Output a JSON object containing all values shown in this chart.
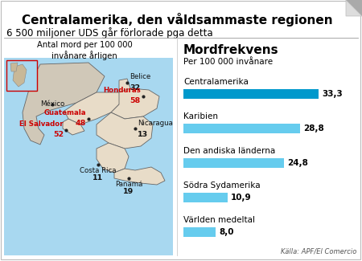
{
  "title": "Centralamerika, den våldsammaste regionen",
  "subtitle": "6 500 miljoner UDS går förlorade pga detta",
  "map_label": "Antal mord per 100 000\ninvånare årligen",
  "bar_title": "Mordfrekvens",
  "bar_subtitle": "Per 100 000 invånare",
  "source": "Källa: APF/El Comercio",
  "bar_categories": [
    "Centralamerika",
    "Karibien",
    "Den andiska länderna",
    "Södra Sydamerika",
    "Världen medeltal"
  ],
  "bar_values": [
    33.3,
    28.8,
    24.8,
    10.9,
    8.0
  ],
  "bar_color_main": "#0099CC",
  "bar_color_light": "#66CCEE",
  "bg_color": "#FFFFFF",
  "ocean_color": "#A8D8F0",
  "land_color": "#E8DCC8",
  "mexico_color": "#D0C8B8",
  "title_fontsize": 11,
  "subtitle_fontsize": 8.5,
  "bar_title_fontsize": 11,
  "fold_size": 20
}
